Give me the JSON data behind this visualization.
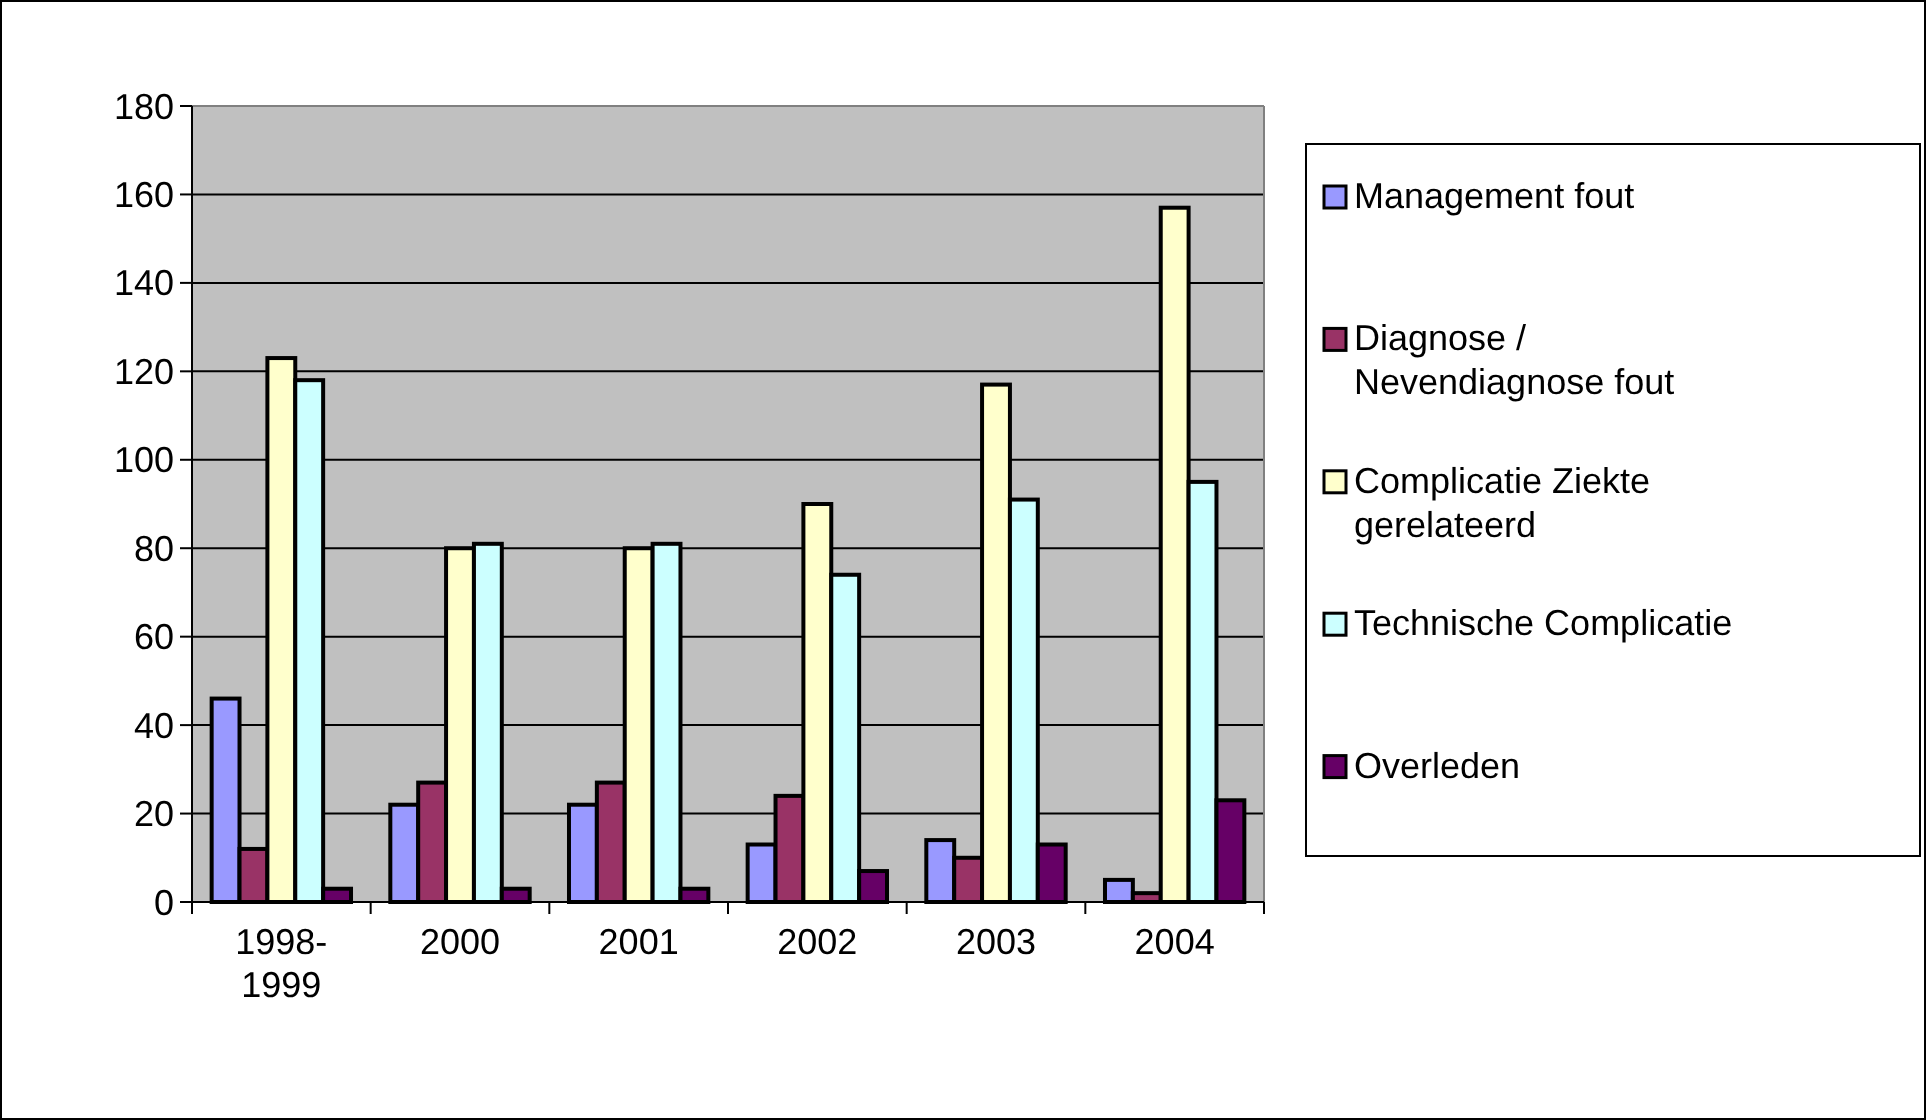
{
  "chart_data": {
    "type": "bar",
    "categories": [
      "1998-1999",
      "2000",
      "2001",
      "2002",
      "2003",
      "2004"
    ],
    "series": [
      {
        "name": "Management fout",
        "color": "#9999ff",
        "values": [
          46,
          22,
          22,
          13,
          14,
          5
        ]
      },
      {
        "name": "Diagnose / Nevendiagnose fout",
        "color": "#993366",
        "values": [
          12,
          27,
          27,
          24,
          10,
          2
        ]
      },
      {
        "name": "Complicatie Ziekte gerelateerd",
        "color": "#ffffcc",
        "values": [
          123,
          80,
          80,
          90,
          117,
          157
        ]
      },
      {
        "name": "Technische Complicatie",
        "color": "#ccffff",
        "values": [
          118,
          81,
          81,
          74,
          91,
          95
        ]
      },
      {
        "name": "Overleden",
        "color": "#660066",
        "values": [
          3,
          3,
          3,
          7,
          13,
          23
        ]
      }
    ],
    "ylim": [
      0,
      180
    ],
    "yticks": [
      0,
      20,
      40,
      60,
      80,
      100,
      120,
      140,
      160,
      180
    ],
    "grid": "y",
    "legend": "right"
  }
}
